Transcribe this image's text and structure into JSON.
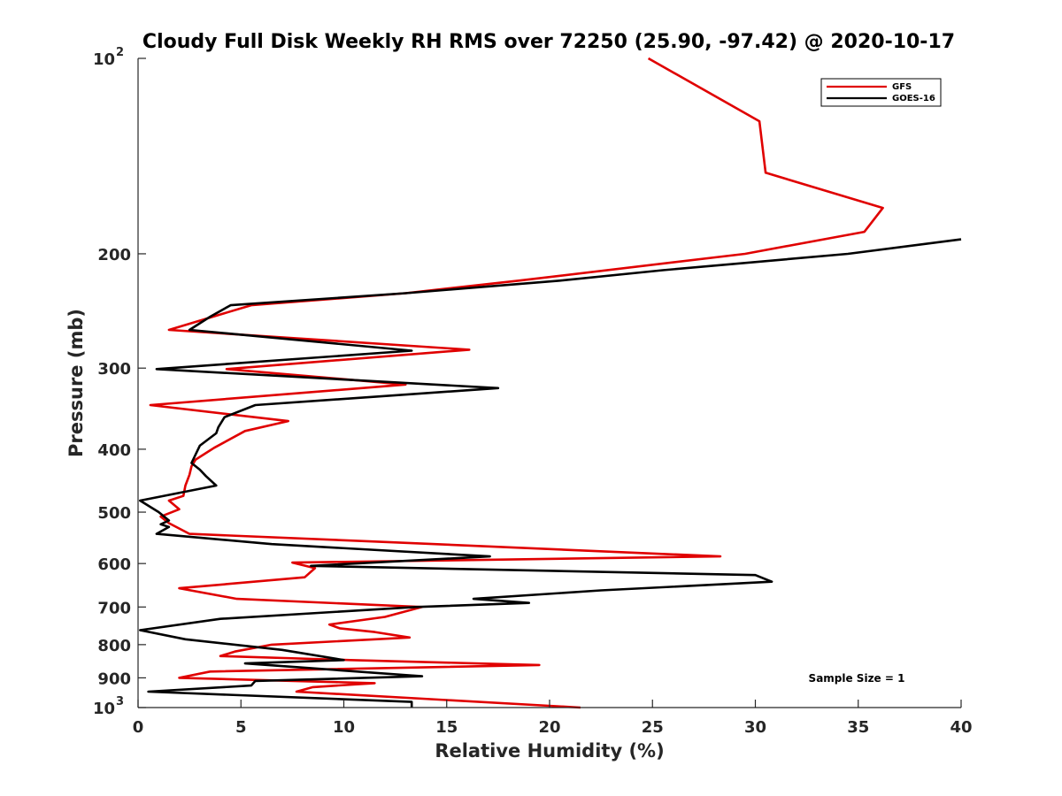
{
  "chart_data": {
    "type": "line",
    "title": "Cloudy Full Disk Weekly RH RMS over 72250 (25.90, -97.42) @ 2020-10-17",
    "xlabel": "Relative Humidity (%)",
    "ylabel": "Pressure (mb)",
    "xlim": [
      0,
      40
    ],
    "ylim": [
      100,
      1000
    ],
    "y_scale": "log",
    "y_reversed": true,
    "x_ticks": [
      "0",
      "5",
      "10",
      "15",
      "20",
      "25",
      "30",
      "35",
      "40"
    ],
    "y_ticks": [
      {
        "value": 100,
        "base": "10",
        "exp": "2"
      },
      {
        "value": 200,
        "label": "200"
      },
      {
        "value": 300,
        "label": "300"
      },
      {
        "value": 400,
        "label": "400"
      },
      {
        "value": 500,
        "label": "500"
      },
      {
        "value": 600,
        "label": "600"
      },
      {
        "value": 700,
        "label": "700"
      },
      {
        "value": 800,
        "label": "800"
      },
      {
        "value": 900,
        "label": "900"
      },
      {
        "value": 1000,
        "base": "10",
        "exp": "3"
      }
    ],
    "legend_position": "top-right",
    "grid": false,
    "annotation": "Sample Size = 1",
    "series": [
      {
        "name": "GFS",
        "color": "#e00000",
        "points": [
          [
            24.8,
            100
          ],
          [
            30.2,
            125
          ],
          [
            30.5,
            150
          ],
          [
            36.2,
            170
          ],
          [
            35.3,
            185
          ],
          [
            29.5,
            200
          ],
          [
            18.5,
            220
          ],
          [
            13.0,
            230
          ],
          [
            5.5,
            240
          ],
          [
            1.5,
            262
          ],
          [
            16.1,
            281
          ],
          [
            4.3,
            301
          ],
          [
            13.0,
            318
          ],
          [
            0.6,
            342
          ],
          [
            7.3,
            362
          ],
          [
            5.2,
            375
          ],
          [
            3.7,
            398
          ],
          [
            2.8,
            415
          ],
          [
            2.6,
            425
          ],
          [
            2.5,
            438
          ],
          [
            2.3,
            455
          ],
          [
            2.2,
            472
          ],
          [
            1.5,
            480
          ],
          [
            2.0,
            495
          ],
          [
            1.1,
            508
          ],
          [
            1.5,
            520
          ],
          [
            2.5,
            540
          ],
          [
            11.5,
            555
          ],
          [
            28.3,
            585
          ],
          [
            7.5,
            598
          ],
          [
            8.6,
            610
          ],
          [
            8.1,
            630
          ],
          [
            2.0,
            655
          ],
          [
            4.8,
            680
          ],
          [
            13.8,
            700
          ],
          [
            12.0,
            725
          ],
          [
            9.3,
            745
          ],
          [
            9.8,
            755
          ],
          [
            11.5,
            765
          ],
          [
            13.2,
            780
          ],
          [
            6.5,
            800
          ],
          [
            4.7,
            820
          ],
          [
            4.0,
            833
          ],
          [
            10.3,
            845
          ],
          [
            19.5,
            860
          ],
          [
            3.5,
            880
          ],
          [
            2.0,
            900
          ],
          [
            11.5,
            917
          ],
          [
            8.5,
            930
          ],
          [
            7.7,
            945
          ],
          [
            21.5,
            1000
          ]
        ]
      },
      {
        "name": "GOES-16",
        "color": "#000000",
        "points": [
          [
            40.0,
            190
          ],
          [
            34.5,
            200
          ],
          [
            25.5,
            212
          ],
          [
            20.5,
            220
          ],
          [
            13.0,
            230
          ],
          [
            4.5,
            240
          ],
          [
            3.5,
            250
          ],
          [
            2.5,
            262
          ],
          [
            13.3,
            282
          ],
          [
            0.9,
            301
          ],
          [
            17.5,
            322
          ],
          [
            5.7,
            342
          ],
          [
            4.2,
            357
          ],
          [
            3.9,
            370
          ],
          [
            3.8,
            378
          ],
          [
            3.0,
            395
          ],
          [
            2.6,
            420
          ],
          [
            3.0,
            430
          ],
          [
            3.3,
            440
          ],
          [
            3.8,
            455
          ],
          [
            0.1,
            480
          ],
          [
            1.0,
            500
          ],
          [
            1.5,
            515
          ],
          [
            1.1,
            522
          ],
          [
            1.5,
            527
          ],
          [
            0.9,
            540
          ],
          [
            6.5,
            560
          ],
          [
            17.1,
            585
          ],
          [
            8.4,
            605
          ],
          [
            30.0,
            625
          ],
          [
            30.8,
            640
          ],
          [
            22.5,
            660
          ],
          [
            16.3,
            680
          ],
          [
            19.0,
            690
          ],
          [
            13.5,
            700
          ],
          [
            4.0,
            730
          ],
          [
            0.1,
            760
          ],
          [
            2.3,
            785
          ],
          [
            7.0,
            815
          ],
          [
            10.0,
            845
          ],
          [
            5.2,
            855
          ],
          [
            13.8,
            895
          ],
          [
            5.7,
            910
          ],
          [
            5.5,
            925
          ],
          [
            0.5,
            945
          ],
          [
            13.3,
            980
          ],
          [
            13.3,
            1000
          ]
        ]
      }
    ]
  }
}
